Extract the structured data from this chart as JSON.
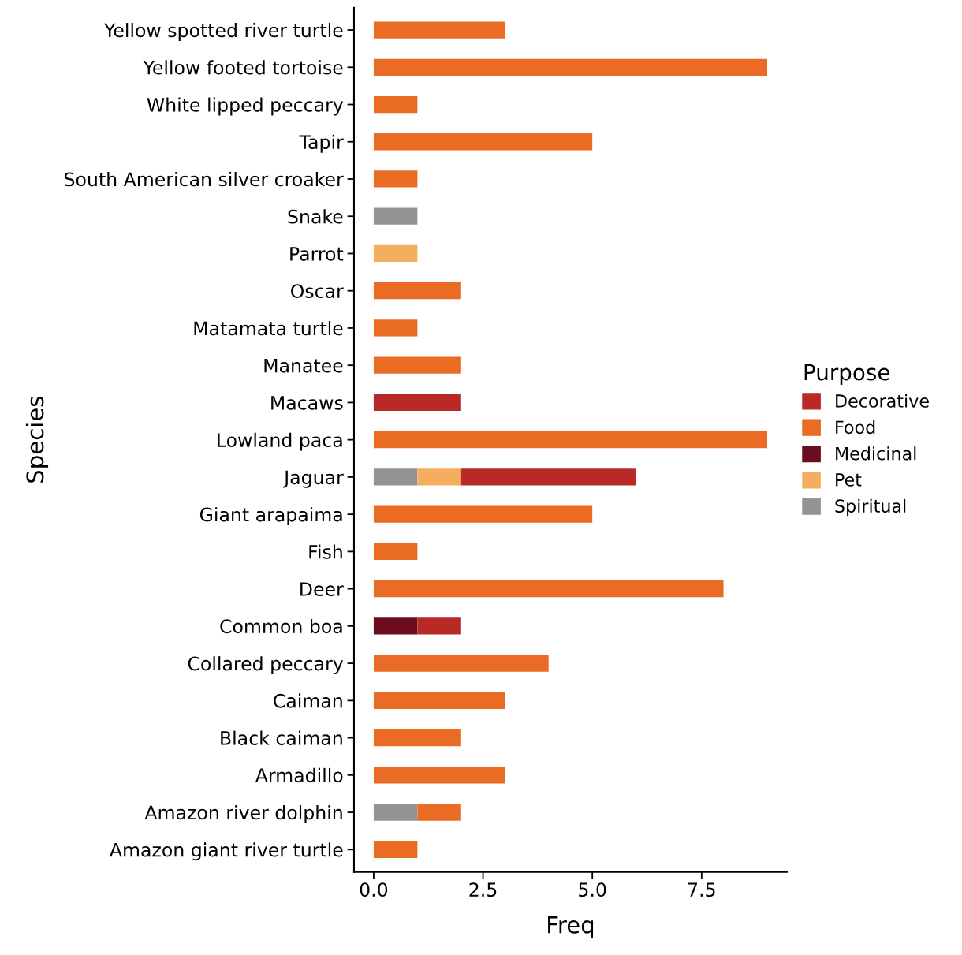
{
  "chart_data": {
    "type": "bar",
    "orientation": "horizontal",
    "stacked": true,
    "xlabel": "Freq",
    "ylabel": "Species",
    "legend_title": "Purpose",
    "legend": "right",
    "grid": false,
    "categories": [
      "Yellow spotted river turtle",
      "Yellow footed tortoise",
      "White lipped peccary",
      "Tapir",
      "South American silver croaker",
      "Snake",
      "Parrot",
      "Oscar",
      "Matamata turtle",
      "Manatee",
      "Macaws",
      "Lowland paca",
      "Jaguar",
      "Giant arapaima",
      "Fish",
      "Deer",
      "Common boa",
      "Collared peccary",
      "Caiman",
      "Black caiman",
      "Armadillo",
      "Amazon river dolphin",
      "Amazon giant river turtle"
    ],
    "xlim": [
      -0.45,
      9.45
    ],
    "xticks": [
      {
        "value": 0,
        "label": "0.0"
      },
      2.5,
      {
        "value": 5,
        "label": "5.0"
      },
      7.5
    ],
    "series": [
      {
        "name": "Spiritual",
        "color": "#939396",
        "values": [
          null,
          null,
          null,
          null,
          null,
          1,
          null,
          null,
          null,
          null,
          null,
          null,
          1,
          null,
          null,
          null,
          null,
          null,
          null,
          null,
          null,
          1,
          null
        ]
      },
      {
        "name": "Pet",
        "color": "#f5ad5f",
        "values": [
          null,
          null,
          null,
          null,
          null,
          null,
          1,
          null,
          null,
          null,
          null,
          null,
          1,
          null,
          null,
          null,
          null,
          null,
          null,
          null,
          null,
          null,
          null
        ]
      },
      {
        "name": "Medicinal",
        "color": "#6b0c1f",
        "values": [
          null,
          null,
          null,
          null,
          null,
          null,
          null,
          null,
          null,
          null,
          null,
          null,
          null,
          null,
          null,
          null,
          1,
          null,
          null,
          null,
          null,
          null,
          null
        ]
      },
      {
        "name": "Food",
        "color": "#e96b24",
        "values": [
          3,
          9,
          1,
          5,
          1,
          null,
          null,
          2,
          1,
          2,
          null,
          9,
          null,
          5,
          1,
          8,
          null,
          4,
          3,
          2,
          3,
          1,
          1
        ]
      },
      {
        "name": "Decorative",
        "color": "#b92a27",
        "values": [
          null,
          null,
          null,
          null,
          null,
          null,
          null,
          null,
          null,
          null,
          2,
          null,
          4,
          null,
          null,
          null,
          1,
          null,
          null,
          null,
          null,
          null,
          null
        ]
      }
    ]
  }
}
